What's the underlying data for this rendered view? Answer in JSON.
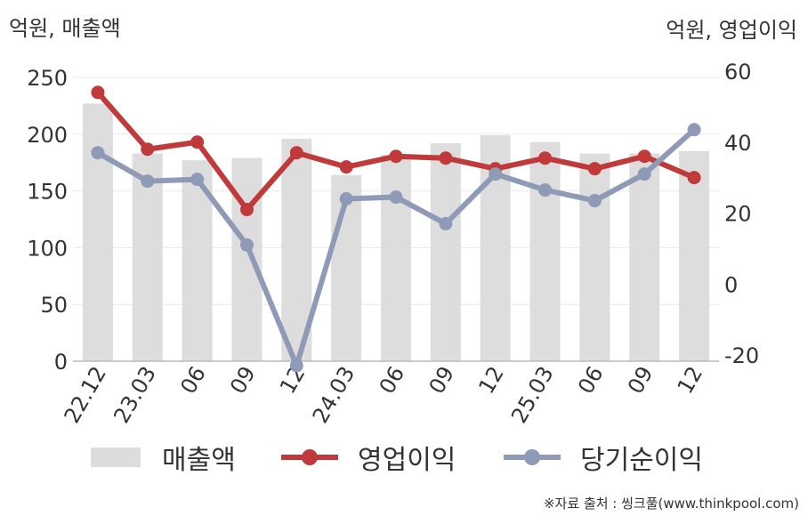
{
  "header": {
    "left_unit": "억원, 매출액",
    "right_unit": "억원, 영업이익"
  },
  "source": "※자료 출처 : 씽크풀(www.thinkpool.com)",
  "legend": {
    "bar_label": "매출액",
    "line1_label": "영업이익",
    "line2_label": "당기순이익"
  },
  "colors": {
    "bar": "#dddddd",
    "line1": "#c0393b",
    "line2": "#8e9ab6",
    "grid": "#e8e8e8",
    "axis": "#bbbbbb",
    "text": "#333333"
  },
  "chart_data": {
    "type": "bar",
    "categories": [
      "22.12",
      "23.03",
      "06",
      "09",
      "12",
      "24.03",
      "06",
      "09",
      "12",
      "25.03",
      "06",
      "09",
      "12"
    ],
    "left_axis": {
      "ylim": [
        0,
        250
      ],
      "ticks": [
        "250",
        "200",
        "150",
        "100",
        "50",
        "0"
      ]
    },
    "right_axis": {
      "ylim": [
        -25,
        60
      ],
      "ticks": [
        "60",
        "40",
        "20",
        "0",
        "-20"
      ]
    },
    "grid": true,
    "legend_position": "bottom",
    "series": [
      {
        "name": "매출액",
        "type": "bar",
        "axis": "left",
        "values": [
          227,
          183,
          177,
          179,
          196,
          164,
          182,
          192,
          199,
          193,
          183,
          183,
          185
        ]
      },
      {
        "name": "영업이익",
        "type": "line",
        "axis": "right",
        "values": [
          54,
          38,
          40,
          21,
          37,
          33,
          36,
          35.5,
          32.5,
          35.5,
          32.5,
          36,
          30
        ]
      },
      {
        "name": "당기순이익",
        "type": "line",
        "axis": "right",
        "values": [
          37,
          29,
          29.5,
          11,
          -23,
          24,
          24.5,
          17,
          31,
          26.5,
          23.5,
          31,
          43.5
        ]
      }
    ]
  }
}
